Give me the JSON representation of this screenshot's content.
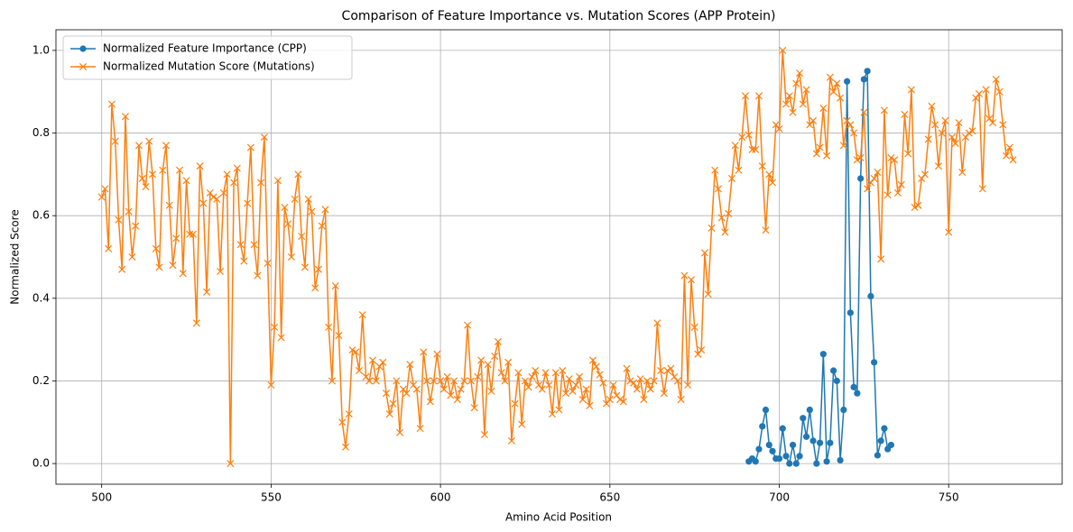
{
  "chart_data": {
    "type": "line",
    "title": "Comparison of Feature Importance vs. Mutation Scores (APP Protein)",
    "x_label": "Amino Acid Position",
    "y_label": "Normalized Score",
    "xlim": [
      486.5,
      783.5
    ],
    "ylim": [
      -0.05,
      1.05
    ],
    "xticks": [
      500,
      550,
      600,
      650,
      700,
      750
    ],
    "yticks": [
      {
        "value": 0,
        "label": "0.0"
      },
      0.2,
      0.4,
      0.6,
      0.8,
      {
        "value": 1,
        "label": "1.0"
      }
    ],
    "grid": true,
    "legend": "upper left",
    "series": [
      {
        "name": "Normalized Feature Importance (CPP)",
        "color": "#1f77b4",
        "marker": "circle",
        "x": [
          691,
          692,
          693,
          694,
          695,
          696,
          697,
          698,
          699,
          700,
          701,
          702,
          703,
          704,
          705,
          706,
          707,
          708,
          709,
          710,
          711,
          712,
          713,
          714,
          715,
          716,
          717,
          718,
          719,
          720,
          721,
          722,
          723,
          724,
          725,
          726,
          727,
          728,
          729,
          730,
          731,
          732,
          733
        ],
        "values": [
          0.005,
          0.012,
          0.005,
          0.035,
          0.09,
          0.13,
          0.045,
          0.03,
          0.012,
          0.012,
          0.085,
          0.018,
          0.0,
          0.045,
          0.0,
          0.018,
          0.11,
          0.065,
          0.13,
          0.055,
          0.0,
          0.05,
          0.265,
          0.005,
          0.05,
          0.225,
          0.2,
          0.008,
          0.13,
          0.925,
          0.365,
          0.185,
          0.17,
          0.69,
          0.93,
          0.95,
          0.405,
          0.245,
          0.02,
          0.055,
          0.085,
          0.035,
          0.045
        ]
      },
      {
        "name": "Normalized Mutation Score (Mutations)",
        "color": "#ff7f0e",
        "marker": "x",
        "x": [
          500,
          501,
          502,
          503,
          504,
          505,
          506,
          507,
          508,
          509,
          510,
          511,
          512,
          513,
          514,
          515,
          516,
          517,
          518,
          519,
          520,
          521,
          522,
          523,
          524,
          525,
          526,
          527,
          528,
          529,
          530,
          531,
          532,
          533,
          534,
          535,
          536,
          537,
          538,
          539,
          540,
          541,
          542,
          543,
          544,
          545,
          546,
          547,
          548,
          549,
          550,
          551,
          552,
          553,
          554,
          555,
          556,
          557,
          558,
          559,
          560,
          561,
          562,
          563,
          564,
          565,
          566,
          567,
          568,
          569,
          570,
          571,
          572,
          573,
          574,
          575,
          576,
          577,
          578,
          579,
          580,
          581,
          582,
          583,
          584,
          585,
          586,
          587,
          588,
          589,
          590,
          591,
          592,
          593,
          594,
          595,
          596,
          597,
          598,
          599,
          600,
          601,
          602,
          603,
          604,
          605,
          606,
          607,
          608,
          609,
          610,
          611,
          612,
          613,
          614,
          615,
          616,
          617,
          618,
          619,
          620,
          621,
          622,
          623,
          624,
          625,
          626,
          627,
          628,
          629,
          630,
          631,
          632,
          633,
          634,
          635,
          636,
          637,
          638,
          639,
          640,
          641,
          642,
          643,
          644,
          645,
          646,
          647,
          648,
          649,
          650,
          651,
          652,
          653,
          654,
          655,
          656,
          657,
          658,
          659,
          660,
          661,
          662,
          663,
          664,
          665,
          666,
          667,
          668,
          669,
          670,
          671,
          672,
          673,
          674,
          675,
          676,
          677,
          678,
          679,
          680,
          681,
          682,
          683,
          684,
          685,
          686,
          687,
          688,
          689,
          690,
          691,
          692,
          693,
          694,
          695,
          696,
          697,
          698,
          699,
          700,
          701,
          702,
          703,
          704,
          705,
          706,
          707,
          708,
          709,
          710,
          711,
          712,
          713,
          714,
          715,
          716,
          717,
          718,
          719,
          720,
          721,
          722,
          723,
          724,
          725,
          726,
          727,
          728,
          729,
          730,
          731,
          732,
          733,
          734,
          735,
          736,
          737,
          738,
          739,
          740,
          741,
          742,
          743,
          744,
          745,
          746,
          747,
          748,
          749,
          750,
          751,
          752,
          753,
          754,
          755,
          756,
          757,
          758,
          759,
          760,
          761,
          762,
          763,
          764,
          765,
          766,
          767,
          768,
          769
        ],
        "values": [
          0.645,
          0.665,
          0.52,
          0.87,
          0.78,
          0.59,
          0.47,
          0.84,
          0.61,
          0.5,
          0.575,
          0.77,
          0.69,
          0.67,
          0.78,
          0.7,
          0.52,
          0.475,
          0.71,
          0.77,
          0.625,
          0.48,
          0.545,
          0.71,
          0.46,
          0.685,
          0.555,
          0.555,
          0.34,
          0.72,
          0.63,
          0.415,
          0.655,
          0.645,
          0.64,
          0.465,
          0.655,
          0.7,
          0.0,
          0.68,
          0.715,
          0.53,
          0.49,
          0.63,
          0.765,
          0.53,
          0.455,
          0.68,
          0.79,
          0.485,
          0.19,
          0.33,
          0.685,
          0.305,
          0.62,
          0.58,
          0.5,
          0.64,
          0.7,
          0.55,
          0.475,
          0.64,
          0.61,
          0.425,
          0.47,
          0.575,
          0.615,
          0.33,
          0.2,
          0.43,
          0.31,
          0.1,
          0.04,
          0.12,
          0.275,
          0.27,
          0.225,
          0.36,
          0.21,
          0.2,
          0.25,
          0.2,
          0.235,
          0.245,
          0.17,
          0.12,
          0.145,
          0.2,
          0.075,
          0.18,
          0.17,
          0.24,
          0.19,
          0.18,
          0.085,
          0.27,
          0.2,
          0.15,
          0.2,
          0.265,
          0.2,
          0.18,
          0.21,
          0.165,
          0.2,
          0.155,
          0.18,
          0.2,
          0.335,
          0.2,
          0.135,
          0.21,
          0.25,
          0.07,
          0.24,
          0.175,
          0.26,
          0.295,
          0.22,
          0.2,
          0.245,
          0.055,
          0.145,
          0.22,
          0.095,
          0.2,
          0.185,
          0.21,
          0.225,
          0.19,
          0.18,
          0.22,
          0.19,
          0.12,
          0.22,
          0.13,
          0.225,
          0.17,
          0.205,
          0.175,
          0.19,
          0.21,
          0.155,
          0.18,
          0.14,
          0.25,
          0.235,
          0.215,
          0.195,
          0.145,
          0.155,
          0.19,
          0.165,
          0.155,
          0.15,
          0.23,
          0.2,
          0.195,
          0.18,
          0.205,
          0.155,
          0.2,
          0.18,
          0.2,
          0.34,
          0.225,
          0.17,
          0.225,
          0.23,
          0.21,
          0.2,
          0.155,
          0.455,
          0.19,
          0.445,
          0.33,
          0.265,
          0.275,
          0.51,
          0.41,
          0.57,
          0.71,
          0.665,
          0.595,
          0.56,
          0.605,
          0.69,
          0.77,
          0.71,
          0.79,
          0.89,
          0.795,
          0.76,
          0.76,
          0.89,
          0.72,
          0.565,
          0.7,
          0.68,
          0.82,
          0.81,
          1.0,
          0.87,
          0.89,
          0.85,
          0.92,
          0.945,
          0.87,
          0.905,
          0.82,
          0.83,
          0.75,
          0.765,
          0.86,
          0.745,
          0.935,
          0.9,
          0.92,
          0.885,
          0.77,
          0.83,
          0.82,
          0.8,
          0.735,
          0.74,
          0.85,
          0.665,
          0.68,
          0.69,
          0.705,
          0.495,
          0.855,
          0.65,
          0.74,
          0.735,
          0.655,
          0.675,
          0.845,
          0.75,
          0.905,
          0.62,
          0.625,
          0.69,
          0.7,
          0.785,
          0.865,
          0.82,
          0.72,
          0.8,
          0.83,
          0.56,
          0.79,
          0.775,
          0.825,
          0.705,
          0.79,
          0.8,
          0.805,
          0.885,
          0.895,
          0.665,
          0.905,
          0.835,
          0.825,
          0.93,
          0.9,
          0.82,
          0.745,
          0.765,
          0.735
        ]
      }
    ]
  }
}
